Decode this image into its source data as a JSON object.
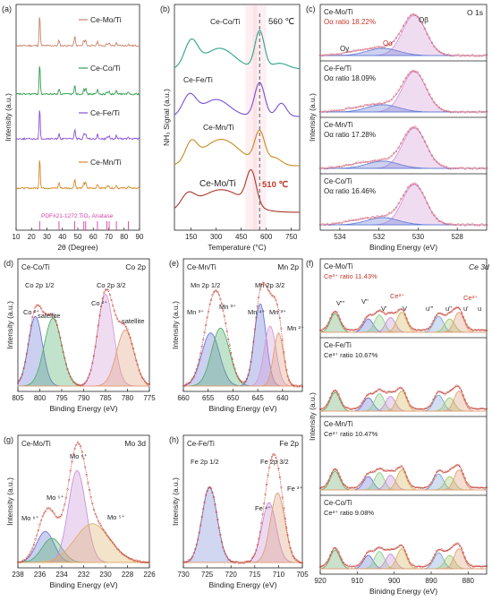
{
  "chart_data": [
    {
      "id": "a",
      "type": "line",
      "panel_label": "(a)",
      "xlabel": "2θ (Degree)",
      "ylabel": "Intensity (a.u.)",
      "xlim": [
        10,
        90
      ],
      "xticks": [
        10,
        20,
        30,
        40,
        50,
        60,
        70,
        80,
        90
      ],
      "series": [
        {
          "name": "Ce-Mo/Ti",
          "color": "#c8826a"
        },
        {
          "name": "Ce-Co/Ti",
          "color": "#2e9e4e"
        },
        {
          "name": "Ce-Fe/Ti",
          "color": "#8a4fd6"
        },
        {
          "name": "Ce-Mn/Ti",
          "color": "#d68a28"
        }
      ],
      "reference": {
        "label": "PDF#21-1272:TiO₂ Anatase",
        "color": "#d63fa8",
        "positions": [
          25.3,
          37.8,
          48.0,
          53.9,
          55.1,
          62.7,
          68.8,
          70.3,
          75.0,
          82.7
        ]
      }
    },
    {
      "id": "b",
      "type": "line",
      "panel_label": "(b)",
      "xlabel": "Temperature (°C)",
      "ylabel": "NH₃ Signal (a.u.)",
      "xlim": [
        50,
        800
      ],
      "xticks": [
        150,
        300,
        450,
        600,
        750
      ],
      "series": [
        {
          "name": "Ce-Co/Ti",
          "color": "#2fa389"
        },
        {
          "name": "Ce-Fe/Ti",
          "color": "#7a4fd6"
        },
        {
          "name": "Ce-Mn/Ti",
          "color": "#c88a1a"
        },
        {
          "name": "Ce-Mo/Ti",
          "color": "#a83a2a"
        }
      ],
      "annotations": [
        {
          "text": "560 ℃",
          "color": "#222222"
        },
        {
          "text": "510 ℃",
          "color": "#c0392b"
        }
      ],
      "vlines": [
        560,
        510
      ]
    },
    {
      "id": "c",
      "type": "line",
      "panel_label": "(c)",
      "title": "O 1s",
      "xlabel": "Binding Energy (eV)",
      "ylabel": "Intensity (a.u.)",
      "xlim": [
        535,
        526.5
      ],
      "xticks": [
        534,
        532,
        530,
        528
      ],
      "subpanels": [
        {
          "sample": "Ce-Mo/Ti",
          "ratio": "Oα ratio 18.22%",
          "peak_labels": [
            "Oγ",
            "Oα",
            "Oβ"
          ]
        },
        {
          "sample": "Ce-Fe/Ti",
          "ratio": "Oα ratio 18.09%"
        },
        {
          "sample": "Ce-Mn/Ti",
          "ratio": "Oα ratio 17.28%"
        },
        {
          "sample": "Ce-Co/Ti",
          "ratio": "Oα ratio 16.46%"
        }
      ]
    },
    {
      "id": "d",
      "type": "line",
      "panel_label": "(d)",
      "sample": "Ce-Co/Ti",
      "title": "Co 2p",
      "xlabel": "Binding Energy (eV)",
      "ylabel": "Intensity (a.u.)",
      "xlim": [
        805,
        775
      ],
      "xticks": [
        805,
        800,
        795,
        790,
        785,
        780,
        775
      ],
      "labels": [
        "Co 2p 1/2",
        "Co 2p 3/2",
        "Co ²⁺",
        "satellite",
        "Co ²⁺",
        "satellite"
      ]
    },
    {
      "id": "e",
      "type": "line",
      "panel_label": "(e)",
      "sample": "Ce-Mn/Ti",
      "title": "Mn 2p",
      "xlabel": "Binding Energy (eV)",
      "ylabel": "Intensity (a.u.)",
      "xlim": [
        660,
        636
      ],
      "xticks": [
        660,
        655,
        650,
        645,
        640
      ],
      "labels": [
        "Mn 2p 1/2",
        "Mn 2p 3/2",
        "Mn ³⁺",
        "Mn ³⁺",
        "Mn ⁴⁺",
        "Mn ³⁺",
        "Mn ²⁺"
      ]
    },
    {
      "id": "f",
      "type": "line",
      "panel_label": "(f)",
      "title": "Ce 3d",
      "xlabel": "Binidng Energy (eV)",
      "ylabel": "Intensity (a.u.)",
      "xlim": [
        920,
        875
      ],
      "xticks": [
        920,
        910,
        900,
        890,
        880
      ],
      "peak_labels": [
        "V'''",
        "V''",
        "V'",
        "Ce³⁺",
        "V",
        "u'''",
        "u''",
        "Ce³⁺",
        "u'",
        "u"
      ],
      "subpanels": [
        {
          "sample": "Ce-Mo/Ti",
          "ratio": "Ce³⁺ ratio 11.43%"
        },
        {
          "sample": "Ce-Fe/Ti",
          "ratio": "Ce³⁺ ratio 10.67%"
        },
        {
          "sample": "Ce-Mn/Ti",
          "ratio": "Ce³⁺ ratio 10.47%"
        },
        {
          "sample": "Ce-Co/Ti",
          "ratio": "Ce³⁺ ratio 9.08%"
        }
      ]
    },
    {
      "id": "g",
      "type": "line",
      "panel_label": "(g)",
      "sample": "Ce-Mo/Ti",
      "title": "Mo 3d",
      "xlabel": "Binding Energy (eV)",
      "ylabel": "Intensity (a.u.)",
      "xlim": [
        238,
        226
      ],
      "xticks": [
        238,
        236,
        234,
        232,
        230,
        228,
        226
      ],
      "labels": [
        "Mo ⁶⁺",
        "Mo ⁵⁺",
        "Mo ⁶⁺",
        "Mo ⁵⁺"
      ]
    },
    {
      "id": "h",
      "type": "line",
      "panel_label": "(h)",
      "sample": "Ce-Fe/Ti",
      "title": "Fe 2p",
      "xlabel": "Binding Energy (eV)",
      "ylabel": "Intensity (a.u.)",
      "xlim": [
        730,
        705
      ],
      "xticks": [
        730,
        725,
        720,
        715,
        710,
        705
      ],
      "labels": [
        "Fe 2p 1/2",
        "Fe 2p 3/2",
        "Fe ⁴⁺",
        "Fe ³⁺"
      ]
    }
  ]
}
